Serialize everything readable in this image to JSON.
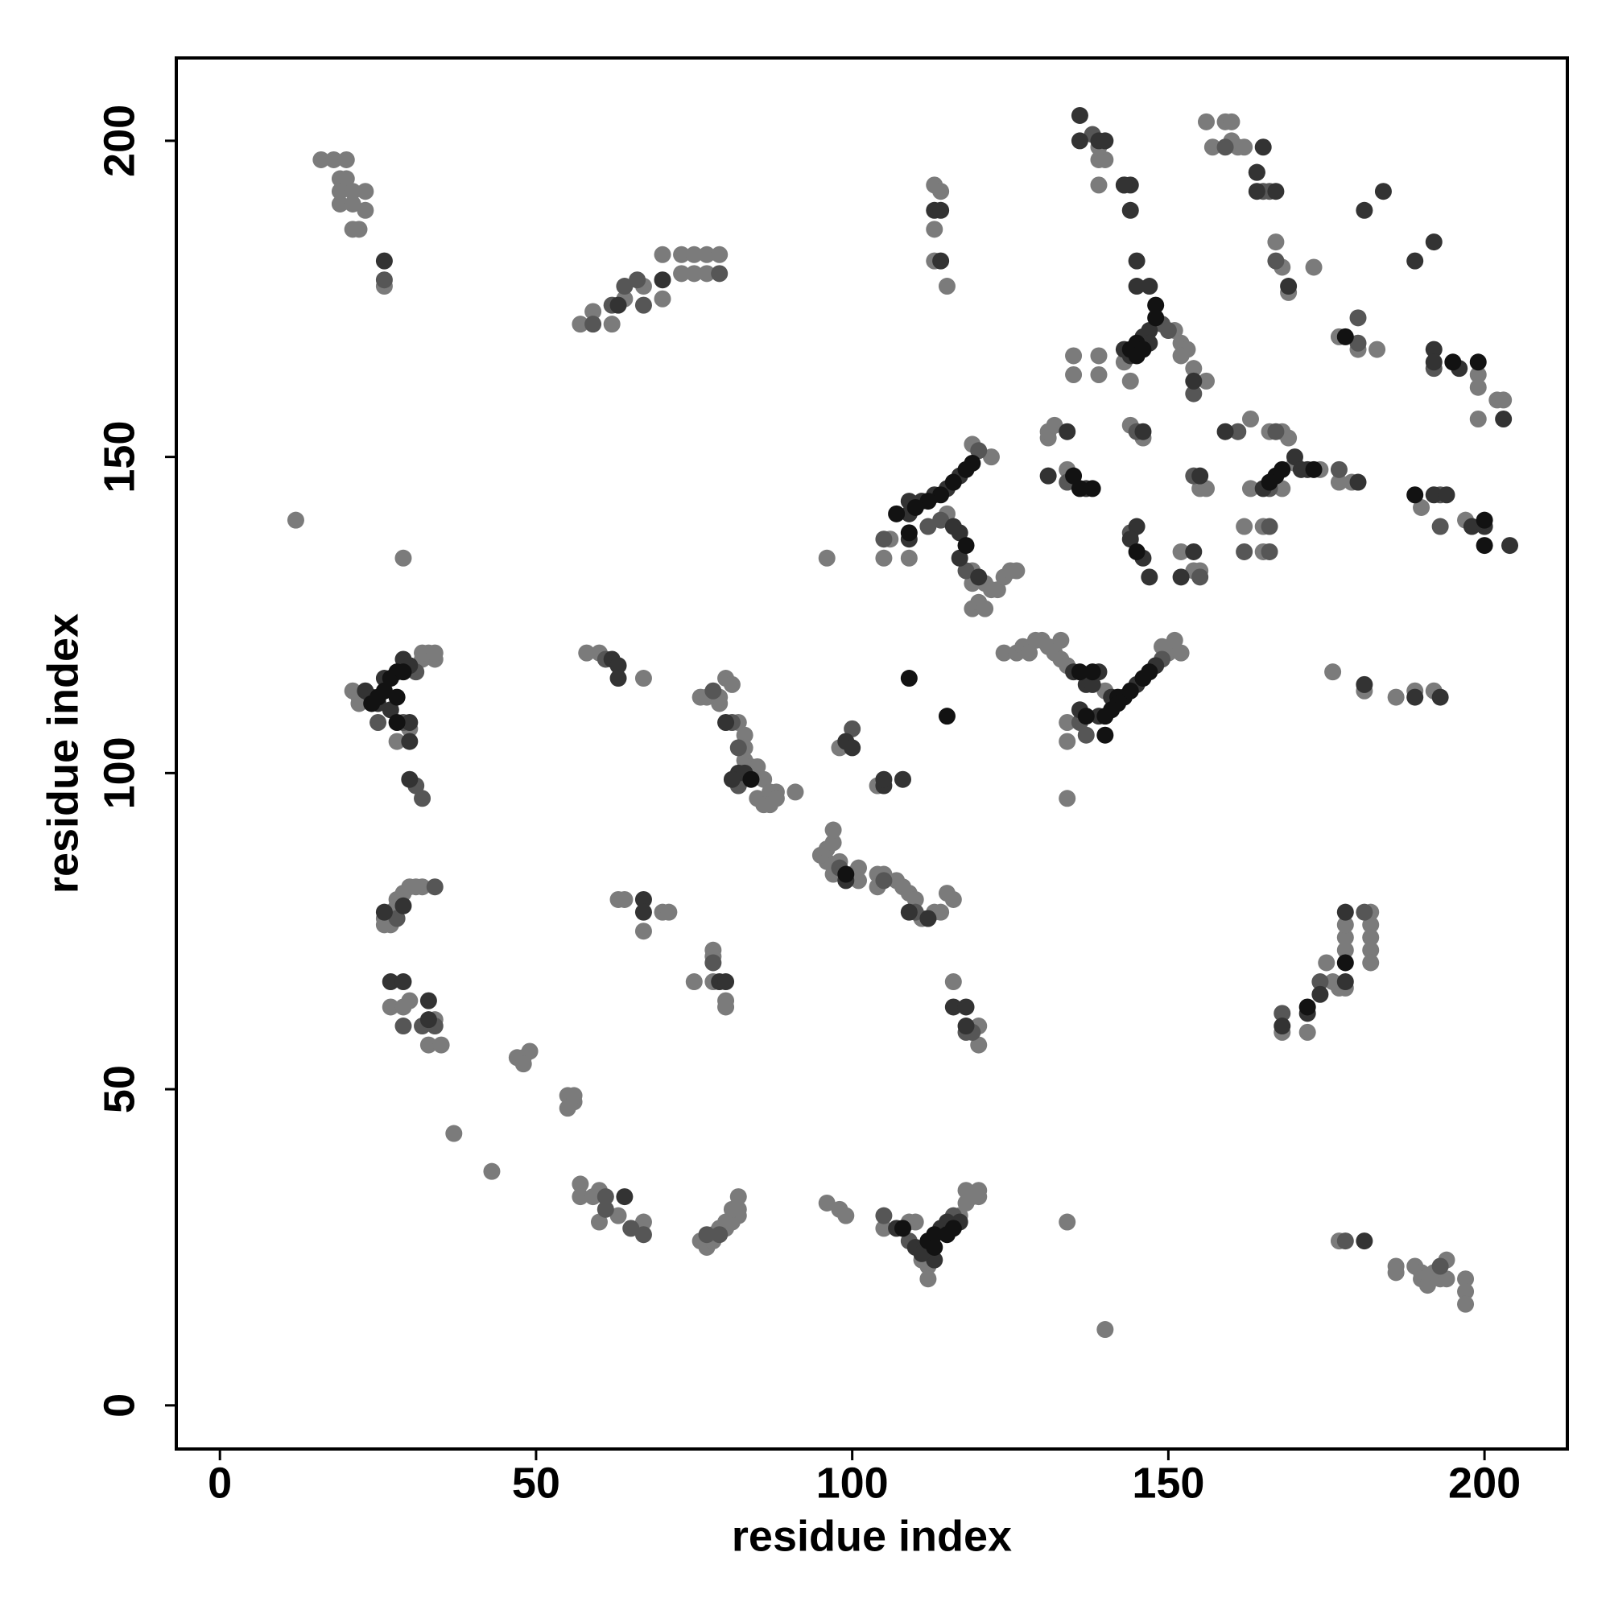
{
  "chart_data": {
    "type": "scatter",
    "xlabel": "residue index",
    "ylabel": "residue index",
    "xlim": [
      -6.9,
      213.1
    ],
    "ylim": [
      -6.9,
      213.1
    ],
    "xticks": [
      0,
      50,
      100,
      150,
      200
    ],
    "yticks": [
      0,
      50,
      100,
      150,
      200
    ],
    "series": [
      {
        "color": "#7b7b7b",
        "x": [
          16,
          18,
          20,
          19,
          20,
          19,
          21,
          23,
          19,
          21,
          23,
          21,
          22,
          26,
          57,
          59,
          62,
          64,
          67,
          70,
          70,
          73,
          75,
          77,
          79,
          73,
          75,
          77,
          113,
          114,
          113,
          115,
          113,
          139,
          140,
          139,
          139,
          156,
          157,
          159,
          160,
          161,
          162,
          160,
          173,
          167,
          168,
          169,
          151,
          152,
          153,
          154,
          152,
          156,
          143,
          144,
          135,
          135,
          139,
          139,
          177,
          180,
          183,
          199,
          199,
          199,
          202,
          203,
          190,
          197,
          163,
          166,
          168,
          169,
          170,
          168,
          174,
          177,
          179,
          163,
          162,
          165,
          165,
          131,
          131,
          132,
          134,
          144,
          146,
          152,
          154,
          155,
          155,
          156,
          122,
          119,
          115,
          119,
          121,
          122,
          119,
          119,
          120,
          121,
          123,
          124,
          125,
          126,
          106,
          105,
          109,
          96,
          124,
          126,
          127,
          128,
          129,
          130,
          131,
          132,
          133,
          133,
          134,
          140,
          150,
          151,
          152,
          149,
          134,
          134,
          134,
          176,
          181,
          186,
          189,
          192,
          21,
          22,
          32,
          32,
          33,
          34,
          34,
          22,
          30,
          28,
          26,
          27,
          28,
          28,
          29,
          30,
          31,
          32,
          26,
          27,
          27,
          29,
          34,
          33,
          35,
          30,
          37,
          43,
          47,
          48,
          49,
          48,
          55,
          56,
          56,
          55,
          57,
          57,
          59,
          60,
          60,
          63,
          67,
          76,
          77,
          78,
          78,
          79,
          80,
          81,
          82,
          82,
          82,
          80,
          81,
          96,
          98,
          99,
          105,
          109,
          110,
          111,
          112,
          117,
          118,
          118,
          119,
          120,
          120,
          112,
          134,
          140,
          12,
          29,
          177,
          186,
          186,
          189,
          190,
          190,
          191,
          192,
          193,
          194,
          194,
          197,
          197,
          197,
          168,
          172,
          175,
          177,
          178,
          178,
          178,
          178,
          182,
          182,
          182,
          182,
          182,
          176,
          63,
          64,
          67,
          70,
          71,
          75,
          78,
          78,
          78,
          80,
          80,
          76,
          77,
          79,
          79,
          80,
          81,
          82,
          83,
          83,
          83,
          84,
          85,
          86,
          87,
          88,
          85,
          86,
          87,
          88,
          91,
          96,
          95,
          96,
          97,
          97,
          98,
          100,
          101,
          101,
          97,
          104,
          105,
          104,
          107,
          108,
          109,
          110,
          111,
          113,
          114,
          115,
          116,
          98,
          104,
          116,
          120,
          120,
          67,
          58,
          60
        ],
        "values": [
          197,
          197,
          197,
          194,
          194,
          192,
          192,
          192,
          190,
          190,
          189,
          186,
          186,
          177,
          171,
          173,
          171,
          175,
          177,
          175,
          182,
          182,
          182,
          182,
          182,
          179,
          179,
          179,
          193,
          192,
          186,
          177,
          181,
          197,
          197,
          193,
          199,
          203,
          199,
          203,
          203,
          199,
          199,
          200,
          180,
          184,
          180,
          176,
          170,
          168,
          167,
          164,
          166,
          162,
          165,
          162,
          166,
          163,
          166,
          163,
          169,
          167,
          167,
          163,
          161,
          156,
          159,
          159,
          142,
          140,
          156,
          154,
          154,
          153,
          149,
          145,
          148,
          146,
          146,
          145,
          139,
          139,
          135,
          153,
          154,
          155,
          148,
          155,
          153,
          135,
          132,
          132,
          145,
          145,
          150,
          152,
          141,
          132,
          130,
          129,
          130,
          126,
          127,
          126,
          129,
          131,
          132,
          132,
          137,
          134,
          134,
          134,
          119,
          119,
          120,
          119,
          121,
          121,
          120,
          119,
          118,
          121,
          117,
          113,
          119,
          121,
          119,
          120,
          105,
          108,
          96,
          116,
          113,
          112,
          113,
          113,
          113,
          112,
          118,
          119,
          119,
          118,
          119,
          111,
          107,
          105,
          77,
          78,
          79,
          80,
          81,
          82,
          82,
          82,
          76,
          76,
          63,
          63,
          61,
          57,
          57,
          64,
          43,
          37,
          55,
          55,
          56,
          54,
          49,
          48,
          49,
          47,
          35,
          33,
          33,
          34,
          29,
          30,
          29,
          26,
          25,
          26,
          27,
          28,
          28,
          29,
          30,
          31,
          33,
          29,
          31,
          32,
          31,
          30,
          28,
          29,
          29,
          23,
          22,
          30,
          32,
          34,
          33,
          33,
          34,
          20,
          29,
          12,
          140,
          134,
          26,
          22,
          21,
          22,
          21,
          20,
          19,
          21,
          20,
          23,
          20,
          20,
          18,
          16,
          59,
          59,
          70,
          66,
          66,
          72,
          74,
          76,
          78,
          76,
          74,
          72,
          70,
          67,
          80,
          80,
          75,
          78,
          78,
          67,
          72,
          71,
          67,
          64,
          63,
          112,
          112,
          111,
          112,
          115,
          114,
          108,
          106,
          104,
          102,
          101,
          101,
          99,
          97,
          97,
          96,
          95,
          95,
          96,
          97,
          86,
          87,
          88,
          89,
          91,
          86,
          84,
          85,
          83,
          84,
          84,
          84,
          82,
          83,
          82,
          81,
          80,
          77,
          78,
          78,
          81,
          80,
          104,
          98,
          67,
          60,
          57,
          115,
          119,
          119
        ]
      },
      {
        "color": "#565656",
        "x": [
          26,
          59,
          62,
          64,
          66,
          67,
          79,
          138,
          143,
          159,
          164,
          165,
          166,
          167,
          149,
          150,
          154,
          180,
          180,
          192,
          193,
          193,
          161,
          167,
          166,
          177,
          162,
          166,
          166,
          134,
          145,
          144,
          154,
          155,
          120,
          112,
          114,
          118,
          105,
          149,
          136,
          137,
          31,
          29,
          25,
          31,
          32,
          34,
          28,
          29,
          32,
          34,
          61,
          65,
          67,
          61,
          79,
          77,
          105,
          109,
          111,
          116,
          178,
          193,
          168,
          174,
          181,
          78,
          78,
          81,
          82,
          82,
          98,
          105,
          110,
          100,
          119,
          118,
          61
        ],
        "values": [
          178,
          171,
          174,
          177,
          178,
          174,
          179,
          201,
          193,
          199,
          195,
          192,
          192,
          181,
          171,
          170,
          160,
          168,
          172,
          164,
          139,
          144,
          154,
          154,
          145,
          148,
          135,
          139,
          135,
          146,
          154,
          138,
          147,
          131,
          151,
          139,
          140,
          132,
          137,
          118,
          108,
          106,
          116,
          108,
          108,
          98,
          96,
          82,
          77,
          60,
          60,
          60,
          33,
          28,
          27,
          31,
          27,
          27,
          30,
          26,
          24,
          30,
          26,
          22,
          62,
          67,
          78,
          70,
          113,
          108,
          104,
          98,
          85,
          83,
          78,
          107,
          59,
          59,
          118
        ]
      },
      {
        "color": "#333333",
        "x": [
          26,
          63,
          70,
          113,
          114,
          114,
          136,
          136,
          139,
          140,
          144,
          144,
          143,
          165,
          164,
          164,
          167,
          181,
          184,
          189,
          192,
          169,
          145,
          145,
          147,
          146,
          147,
          143,
          144,
          147,
          154,
          192,
          192,
          196,
          203,
          192,
          194,
          198,
          200,
          204,
          159,
          170,
          171,
          165,
          172,
          180,
          134,
          137,
          131,
          146,
          145,
          146,
          147,
          144,
          152,
          154,
          155,
          117,
          115,
          113,
          111,
          109,
          109,
          116,
          117,
          117,
          120,
          109,
          135,
          139,
          137,
          138,
          141,
          145,
          148,
          139,
          136,
          181,
          189,
          193,
          23,
          24,
          26,
          29,
          30,
          25,
          27,
          30,
          30,
          30,
          26,
          29,
          27,
          29,
          33,
          33,
          64,
          107,
          110,
          113,
          114,
          115,
          117,
          111,
          181,
          168,
          172,
          174,
          178,
          178,
          67,
          67,
          79,
          80,
          80,
          82,
          83,
          81,
          99,
          109,
          112,
          99,
          100,
          105,
          105,
          108,
          116,
          118,
          118,
          62,
          63,
          63
        ],
        "values": [
          181,
          174,
          178,
          189,
          181,
          189,
          204,
          200,
          200,
          200,
          193,
          189,
          193,
          199,
          195,
          192,
          192,
          189,
          192,
          181,
          184,
          177,
          181,
          177,
          177,
          169,
          170,
          167,
          166,
          168,
          162,
          167,
          165,
          164,
          156,
          144,
          144,
          139,
          139,
          136,
          154,
          150,
          148,
          145,
          148,
          146,
          154,
          145,
          147,
          154,
          139,
          134,
          131,
          137,
          131,
          135,
          147,
          147,
          145,
          144,
          143,
          143,
          141,
          139,
          138,
          134,
          131,
          137,
          116,
          116,
          114,
          114,
          112,
          114,
          117,
          109,
          110,
          114,
          112,
          112,
          113,
          112,
          115,
          118,
          117,
          111,
          110,
          108,
          105,
          99,
          78,
          79,
          67,
          67,
          64,
          61,
          33,
          28,
          25,
          23,
          28,
          29,
          29,
          24,
          26,
          60,
          62,
          65,
          67,
          78,
          80,
          78,
          67,
          67,
          108,
          100,
          100,
          99,
          83,
          78,
          77,
          105,
          104,
          98,
          99,
          99,
          63,
          63,
          60,
          118,
          117,
          115
        ]
      },
      {
        "color": "#121212",
        "x": [
          148,
          148,
          145,
          144,
          145,
          146,
          178,
          195,
          199,
          189,
          200,
          200,
          168,
          167,
          166,
          173,
          135,
          136,
          138,
          145,
          119,
          118,
          116,
          114,
          112,
          110,
          107,
          118,
          109,
          136,
          138,
          142,
          142,
          143,
          144,
          146,
          147,
          141,
          140,
          137,
          140,
          109,
          115,
          24,
          25,
          26,
          27,
          28,
          29,
          28,
          28,
          108,
          112,
          113,
          113,
          115,
          116,
          172,
          178,
          84,
          99
        ],
        "values": [
          174,
          172,
          168,
          167,
          166,
          167,
          169,
          165,
          165,
          144,
          140,
          136,
          148,
          147,
          146,
          148,
          147,
          145,
          145,
          135,
          149,
          148,
          146,
          144,
          143,
          142,
          141,
          136,
          138,
          116,
          116,
          112,
          111,
          112,
          113,
          115,
          116,
          110,
          109,
          109,
          106,
          115,
          109,
          111,
          112,
          113,
          115,
          116,
          116,
          108,
          112,
          28,
          26,
          27,
          25,
          27,
          28,
          63,
          70,
          99,
          84
        ]
      }
    ]
  }
}
